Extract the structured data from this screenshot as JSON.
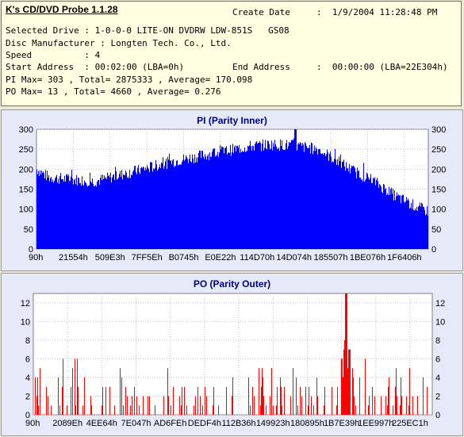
{
  "header": {
    "app_title": "K's CD/DVD Probe 1.1.28",
    "create_date_label": "Create Date",
    "create_date_value": ":  1/9/2004 11:28:48 PM",
    "selected_drive": "Selected Drive : 1-0-0-0 LITE-ON DVDRW LDW-851S   GS08",
    "disc_manufacturer": "Disc Manufacturer : Longten Tech. Co., Ltd.",
    "speed": "Speed          : 4",
    "start_address": "Start Address  : 00:02:00 (LBA=0h)",
    "end_address_label": "End Address",
    "end_address_value": ":  00:00:00 (LBA=22E304h)",
    "pi_stats": "PI Max= 303 , Total= 2875333 , Average= 170.098",
    "po_stats": "PO Max= 13 , Total= 4660 , Average= 0.276"
  },
  "colors": {
    "pi_bar": "#0000ff",
    "po_bar": "#ff0000",
    "plot_bg": "#ffffff",
    "title": "#000080"
  },
  "chart_data": [
    {
      "type": "bar",
      "title": "PI (Parity Inner)",
      "ylim": [
        0,
        300
      ],
      "yticks": [
        0,
        50,
        100,
        150,
        200,
        250,
        300
      ],
      "xticks": [
        "90h",
        "21554h",
        "509E3h",
        "7FF5Eh",
        "B0745h",
        "E0E22h",
        "114D70h",
        "14D074h",
        "185507h",
        "1BE076h",
        "1F6406h"
      ],
      "grid": true,
      "envelope": {
        "x": [
          0,
          0.03,
          0.08,
          0.15,
          0.25,
          0.35,
          0.45,
          0.55,
          0.6,
          0.65,
          0.72,
          0.8,
          0.86,
          0.92,
          0.97,
          1.0
        ],
        "y": [
          200,
          180,
          175,
          170,
          195,
          220,
          240,
          258,
          262,
          260,
          250,
          200,
          170,
          130,
          105,
          95
        ]
      },
      "max": 303
    },
    {
      "type": "bar",
      "title": "PO (Parity Outer)",
      "ylim": [
        0,
        13
      ],
      "yticks": [
        0,
        2,
        4,
        6,
        8,
        10,
        12
      ],
      "xticks": [
        "90h",
        "2089Eh",
        "4EE64h",
        "7E047h",
        "AD6FEh",
        "DEDF4h",
        "112B36h",
        "149923h",
        "180895h",
        "1B7E39h",
        "1EE997h",
        "225EC1h"
      ],
      "grid": true,
      "baseline_pattern": [
        0,
        0,
        1,
        0,
        2,
        0,
        1,
        3,
        0,
        0,
        2,
        4,
        0,
        1,
        0,
        0,
        3,
        0,
        2,
        0
      ],
      "peaks": [
        {
          "x": 0.783,
          "y": 13
        },
        {
          "x": 0.78,
          "y": 8
        },
        {
          "x": 0.79,
          "y": 7
        }
      ],
      "max": 13
    }
  ]
}
